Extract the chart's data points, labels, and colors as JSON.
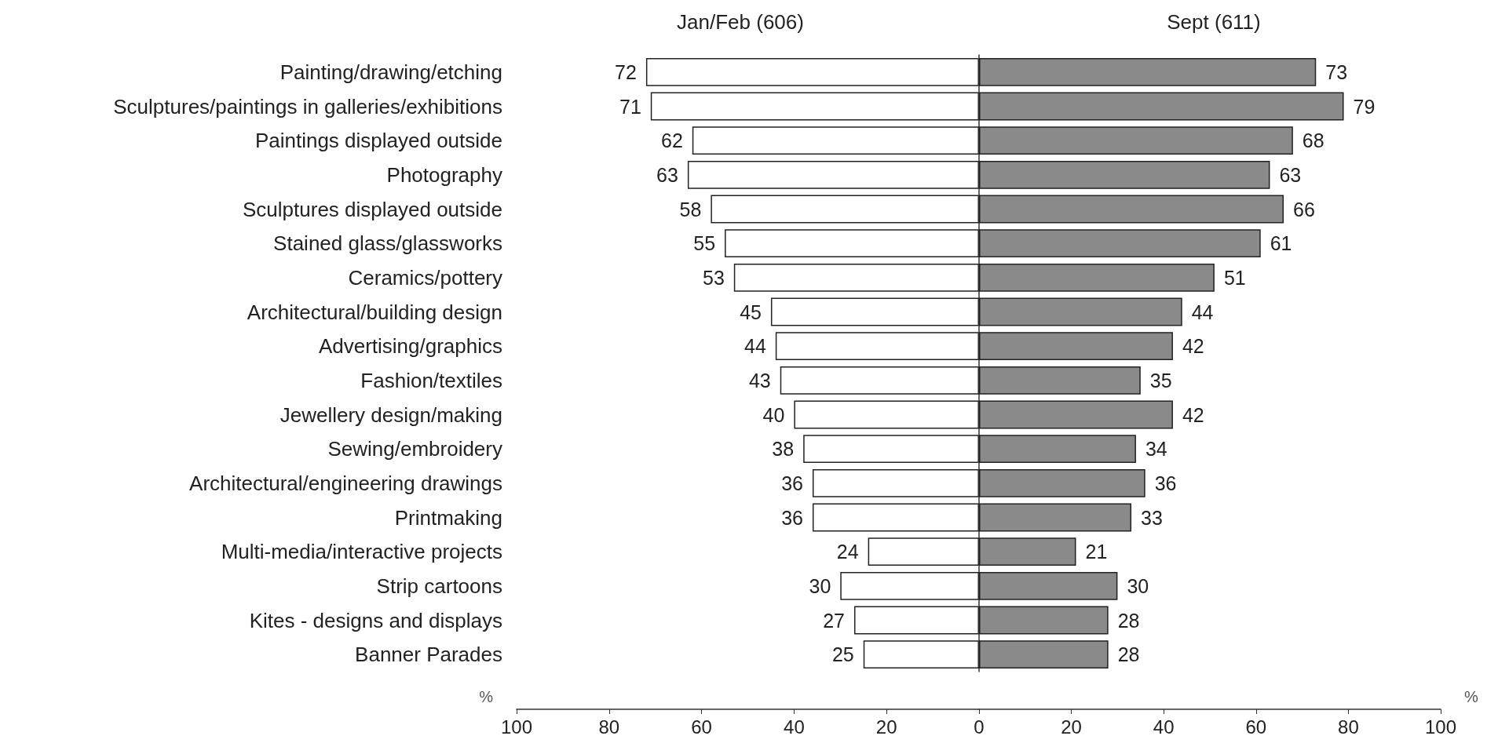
{
  "chart_data": [
    {
      "type": "bar",
      "orientation": "horizontal",
      "title": "Jan/Feb (606)",
      "xlabel": "%",
      "categories": [
        "Painting/drawing/etching",
        "Sculptures/paintings in galleries/exhibitions",
        "Paintings displayed outside",
        "Photography",
        "Sculptures displayed outside",
        "Stained glass/glassworks",
        "Ceramics/pottery",
        "Architectural/building design",
        "Advertising/graphics",
        "Fashion/textiles",
        "Jewellery design/making",
        "Sewing/embroidery",
        "Architectural/engineering drawings",
        "Printmaking",
        "Multi-media/interactive projects",
        "Strip cartoons",
        "Kites - designs and displays",
        "Banner Parades"
      ],
      "values": [
        72,
        71,
        62,
        63,
        58,
        55,
        53,
        45,
        44,
        43,
        40,
        38,
        36,
        36,
        24,
        30,
        27,
        25
      ],
      "color": "#ffffff",
      "xlim": [
        100,
        0
      ],
      "xticks": [
        100,
        80,
        60,
        40,
        20
      ],
      "data_labels": true,
      "grid": false
    },
    {
      "type": "bar",
      "orientation": "horizontal",
      "title": "Sept (611)",
      "xlabel": "%",
      "categories": [
        null,
        null,
        null,
        null,
        null,
        null,
        null,
        null,
        null,
        null,
        null,
        null,
        null,
        null,
        null,
        null,
        null,
        null
      ],
      "values": [
        73,
        79,
        68,
        63,
        66,
        61,
        51,
        44,
        42,
        35,
        42,
        34,
        36,
        33,
        21,
        30,
        28,
        28
      ],
      "color": "#8a8a8a",
      "xlim": [
        0,
        100
      ],
      "xticks": [
        0,
        20,
        40,
        60,
        80,
        100
      ],
      "data_labels": true,
      "grid": false,
      "tick_labels": "x"
    }
  ]
}
